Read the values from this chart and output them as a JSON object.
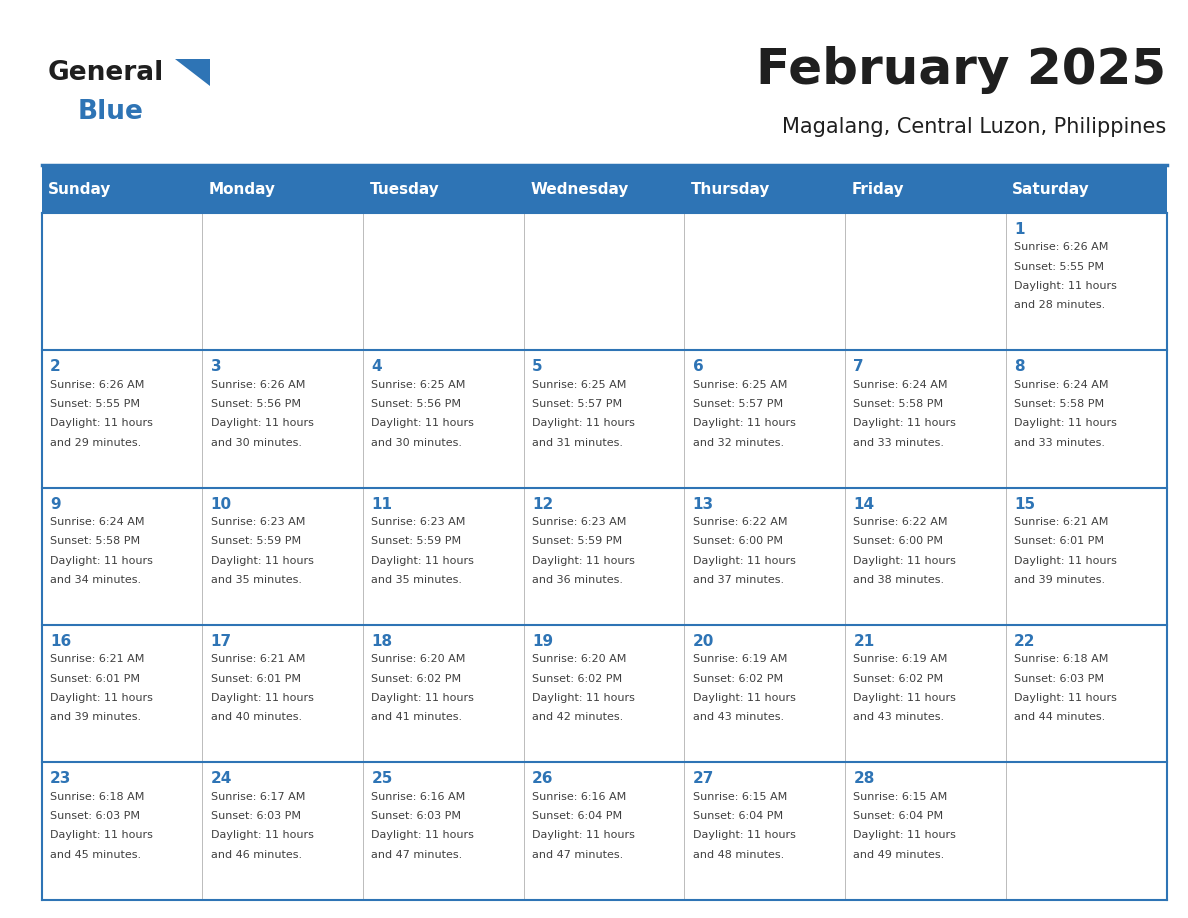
{
  "title": "February 2025",
  "subtitle": "Magalang, Central Luzon, Philippines",
  "header_bg": "#2E74B5",
  "header_text_color": "#FFFFFF",
  "cell_bg": "#FFFFFF",
  "border_color": "#2E74B5",
  "sep_line_color": "#2E74B5",
  "day_names": [
    "Sunday",
    "Monday",
    "Tuesday",
    "Wednesday",
    "Thursday",
    "Friday",
    "Saturday"
  ],
  "title_color": "#1F1F1F",
  "subtitle_color": "#1F1F1F",
  "day_num_color": "#2E74B5",
  "cell_text_color": "#404040",
  "logo_general_color": "#1F1F1F",
  "logo_blue_color": "#2E74B5",
  "logo_triangle_color": "#2E74B5",
  "calendar": [
    [
      null,
      null,
      null,
      null,
      null,
      null,
      {
        "day": 1,
        "sunrise": "6:26 AM",
        "sunset": "5:55 PM",
        "daylight": "11 hours and 28 minutes."
      }
    ],
    [
      {
        "day": 2,
        "sunrise": "6:26 AM",
        "sunset": "5:55 PM",
        "daylight": "11 hours and 29 minutes."
      },
      {
        "day": 3,
        "sunrise": "6:26 AM",
        "sunset": "5:56 PM",
        "daylight": "11 hours and 30 minutes."
      },
      {
        "day": 4,
        "sunrise": "6:25 AM",
        "sunset": "5:56 PM",
        "daylight": "11 hours and 30 minutes."
      },
      {
        "day": 5,
        "sunrise": "6:25 AM",
        "sunset": "5:57 PM",
        "daylight": "11 hours and 31 minutes."
      },
      {
        "day": 6,
        "sunrise": "6:25 AM",
        "sunset": "5:57 PM",
        "daylight": "11 hours and 32 minutes."
      },
      {
        "day": 7,
        "sunrise": "6:24 AM",
        "sunset": "5:58 PM",
        "daylight": "11 hours and 33 minutes."
      },
      {
        "day": 8,
        "sunrise": "6:24 AM",
        "sunset": "5:58 PM",
        "daylight": "11 hours and 33 minutes."
      }
    ],
    [
      {
        "day": 9,
        "sunrise": "6:24 AM",
        "sunset": "5:58 PM",
        "daylight": "11 hours and 34 minutes."
      },
      {
        "day": 10,
        "sunrise": "6:23 AM",
        "sunset": "5:59 PM",
        "daylight": "11 hours and 35 minutes."
      },
      {
        "day": 11,
        "sunrise": "6:23 AM",
        "sunset": "5:59 PM",
        "daylight": "11 hours and 35 minutes."
      },
      {
        "day": 12,
        "sunrise": "6:23 AM",
        "sunset": "5:59 PM",
        "daylight": "11 hours and 36 minutes."
      },
      {
        "day": 13,
        "sunrise": "6:22 AM",
        "sunset": "6:00 PM",
        "daylight": "11 hours and 37 minutes."
      },
      {
        "day": 14,
        "sunrise": "6:22 AM",
        "sunset": "6:00 PM",
        "daylight": "11 hours and 38 minutes."
      },
      {
        "day": 15,
        "sunrise": "6:21 AM",
        "sunset": "6:01 PM",
        "daylight": "11 hours and 39 minutes."
      }
    ],
    [
      {
        "day": 16,
        "sunrise": "6:21 AM",
        "sunset": "6:01 PM",
        "daylight": "11 hours and 39 minutes."
      },
      {
        "day": 17,
        "sunrise": "6:21 AM",
        "sunset": "6:01 PM",
        "daylight": "11 hours and 40 minutes."
      },
      {
        "day": 18,
        "sunrise": "6:20 AM",
        "sunset": "6:02 PM",
        "daylight": "11 hours and 41 minutes."
      },
      {
        "day": 19,
        "sunrise": "6:20 AM",
        "sunset": "6:02 PM",
        "daylight": "11 hours and 42 minutes."
      },
      {
        "day": 20,
        "sunrise": "6:19 AM",
        "sunset": "6:02 PM",
        "daylight": "11 hours and 43 minutes."
      },
      {
        "day": 21,
        "sunrise": "6:19 AM",
        "sunset": "6:02 PM",
        "daylight": "11 hours and 43 minutes."
      },
      {
        "day": 22,
        "sunrise": "6:18 AM",
        "sunset": "6:03 PM",
        "daylight": "11 hours and 44 minutes."
      }
    ],
    [
      {
        "day": 23,
        "sunrise": "6:18 AM",
        "sunset": "6:03 PM",
        "daylight": "11 hours and 45 minutes."
      },
      {
        "day": 24,
        "sunrise": "6:17 AM",
        "sunset": "6:03 PM",
        "daylight": "11 hours and 46 minutes."
      },
      {
        "day": 25,
        "sunrise": "6:16 AM",
        "sunset": "6:03 PM",
        "daylight": "11 hours and 47 minutes."
      },
      {
        "day": 26,
        "sunrise": "6:16 AM",
        "sunset": "6:04 PM",
        "daylight": "11 hours and 47 minutes."
      },
      {
        "day": 27,
        "sunrise": "6:15 AM",
        "sunset": "6:04 PM",
        "daylight": "11 hours and 48 minutes."
      },
      {
        "day": 28,
        "sunrise": "6:15 AM",
        "sunset": "6:04 PM",
        "daylight": "11 hours and 49 minutes."
      },
      null
    ]
  ],
  "figsize": [
    11.88,
    9.18
  ],
  "dpi": 100
}
